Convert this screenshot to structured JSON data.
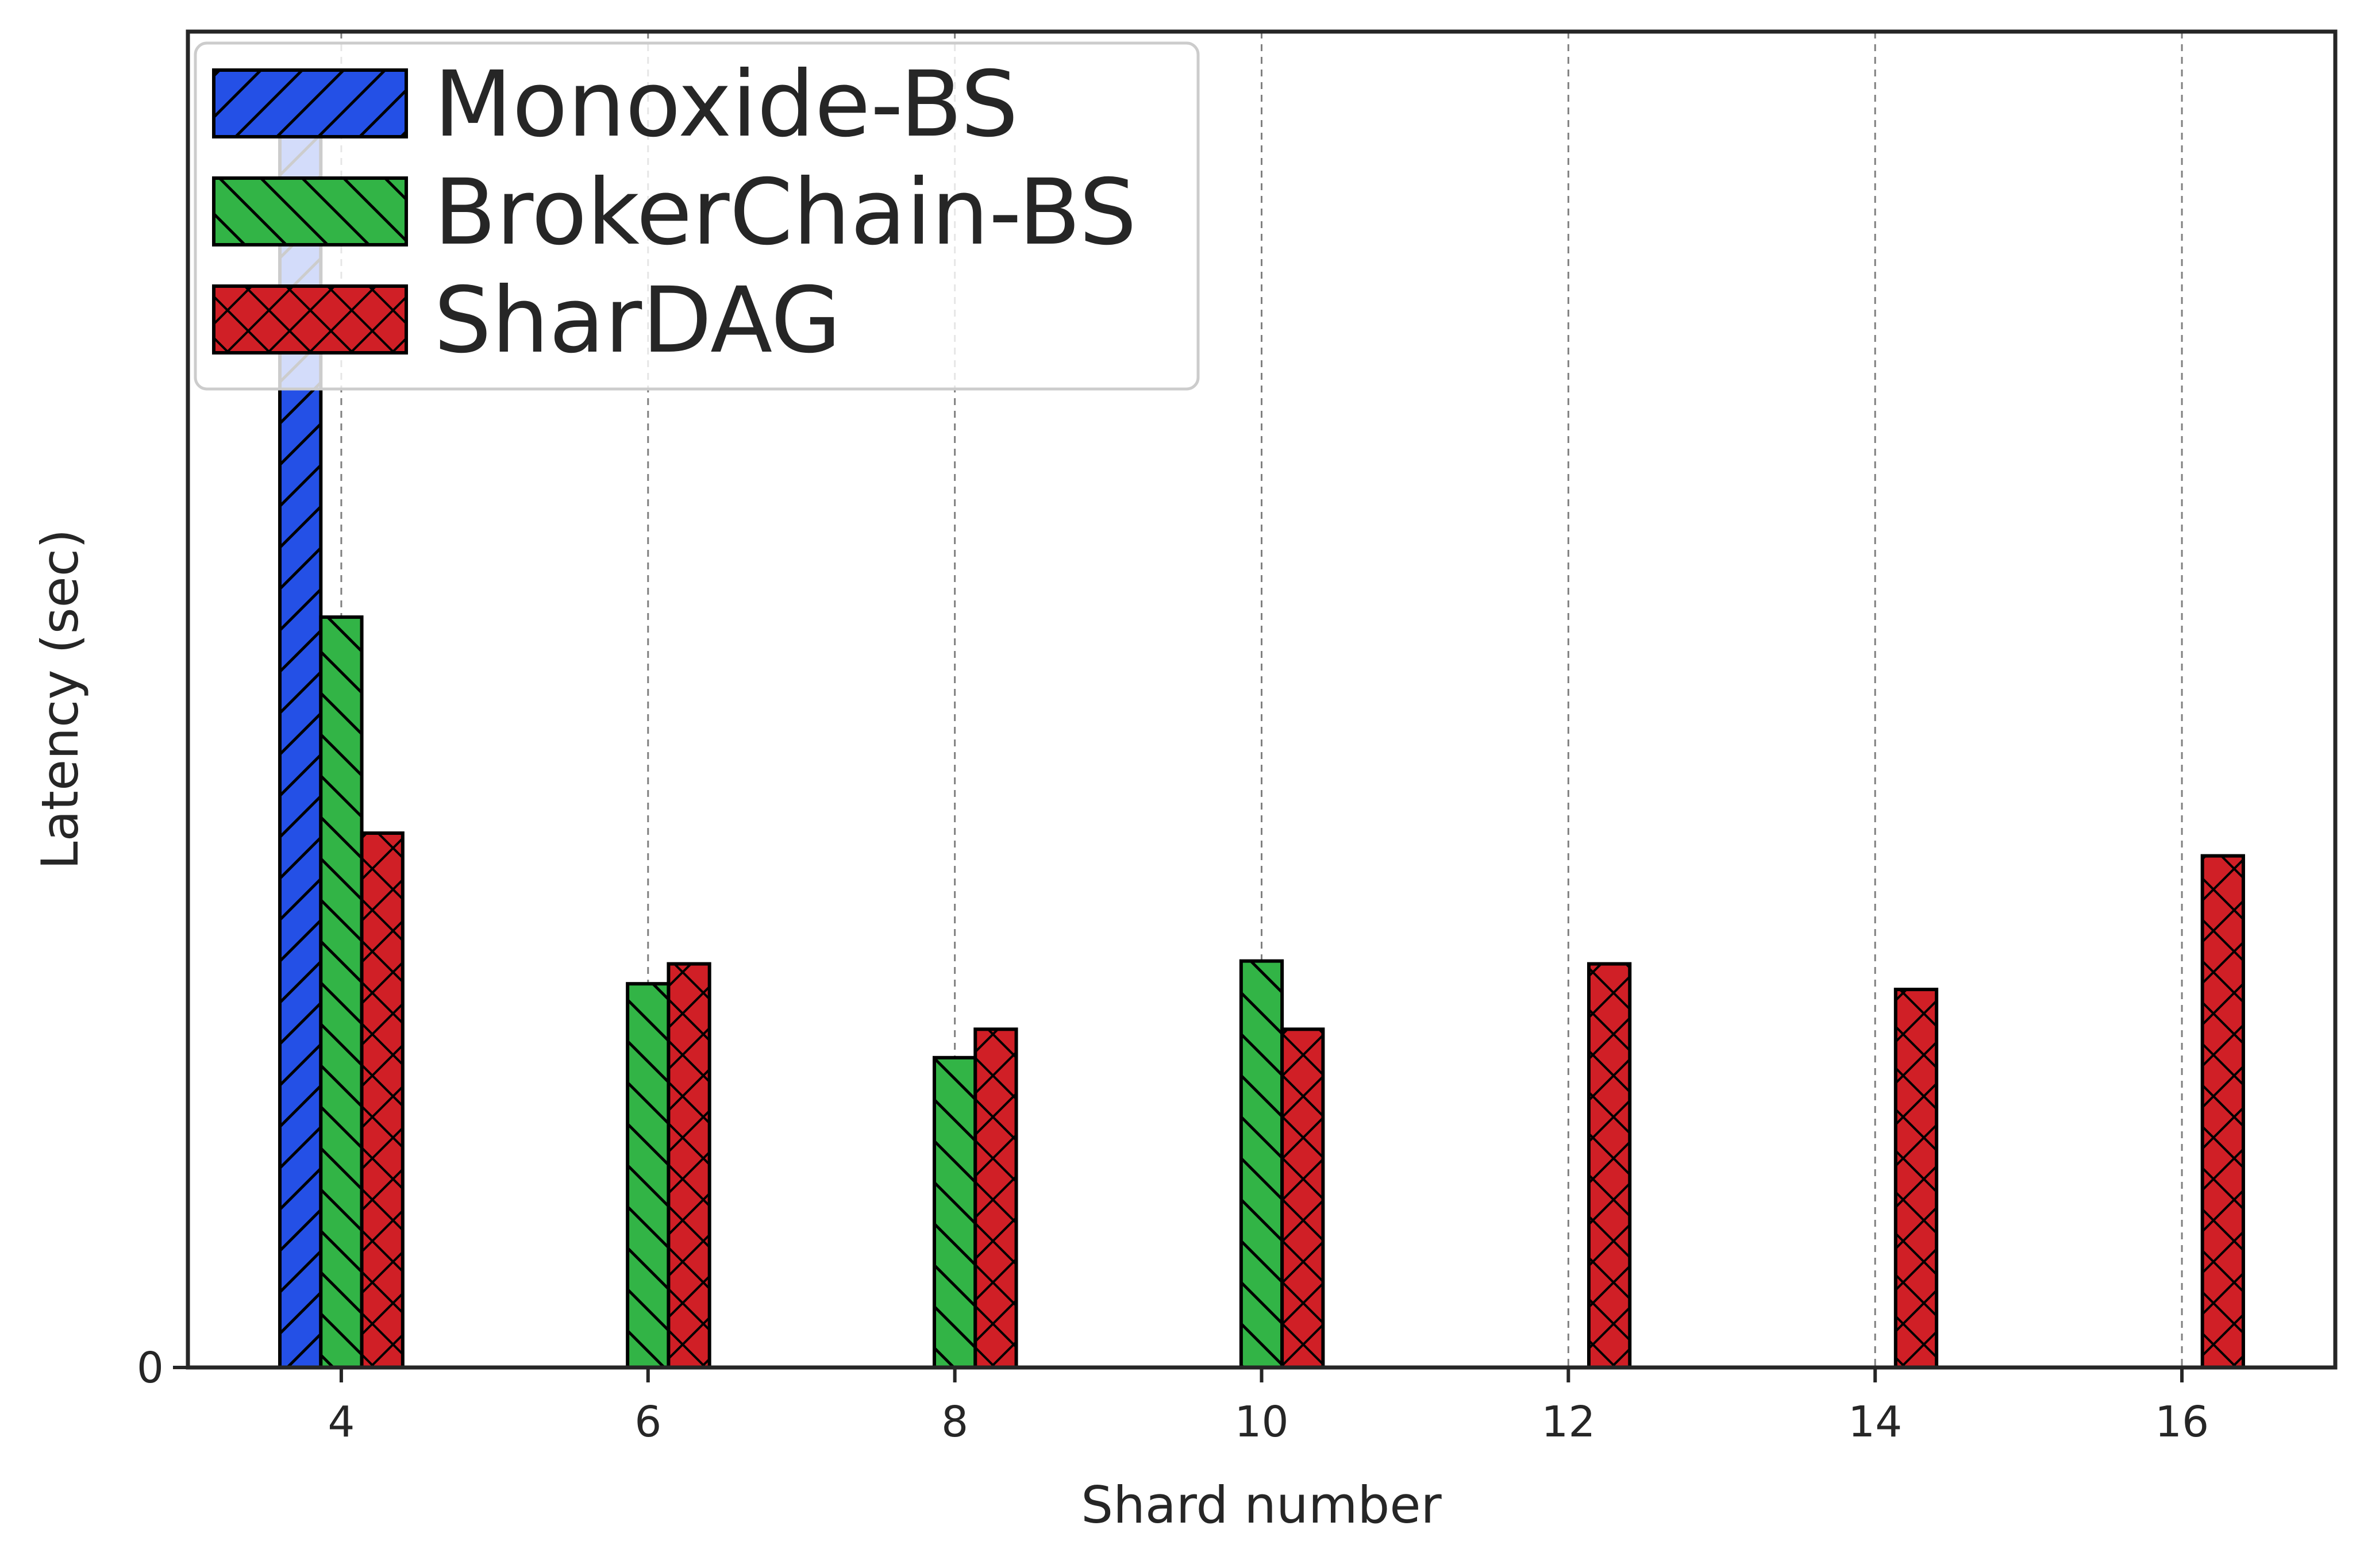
{
  "chart_data": {
    "type": "bar",
    "title": "",
    "xlabel": "Shard number",
    "ylabel": "Latency (sec)",
    "x": [
      4,
      6,
      8,
      10,
      12,
      14,
      16
    ],
    "xticks": [
      "4",
      "6",
      "8",
      "10",
      "12",
      "14",
      "16"
    ],
    "yticks": [
      "0"
    ],
    "xlim": [
      3.0,
      17.0
    ],
    "ylim": [
      0,
      4.7
    ],
    "grid": "vertical dashed at x ticks",
    "legend": "top-left",
    "series": [
      {
        "name": "Monoxide-BS",
        "color": "#2450e6",
        "hatch": "forward-diagonal",
        "values": [
          4.35,
          null,
          null,
          null,
          null,
          null,
          null
        ]
      },
      {
        "name": "BrokerChain-BS",
        "color": "#32b446",
        "hatch": "back-diagonal",
        "values": [
          2.64,
          1.35,
          1.09,
          1.43,
          null,
          null,
          null
        ]
      },
      {
        "name": "SharDAG",
        "color": "#d01f26",
        "hatch": "crosshatch",
        "values": [
          1.88,
          1.42,
          1.19,
          1.19,
          1.42,
          1.33,
          1.8
        ]
      }
    ]
  }
}
